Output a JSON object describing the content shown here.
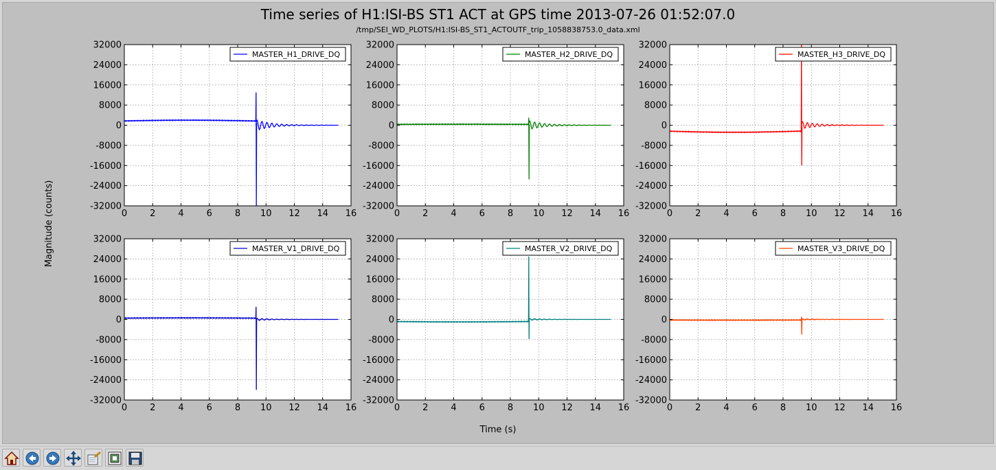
{
  "figure": {
    "title": "Time series of H1:ISI-BS ST1 ACT at GPS time 2013-07-26 01:52:07.0",
    "subtitle": "/tmp/SEI_WD_PLOTS/H1:ISI-BS_ST1_ACTOUTF_trip_1058838753.0_data.xml",
    "ylabel": "Magnitude (counts)",
    "xlabel": "Time (s)",
    "background": "#bfbfbf"
  },
  "chart_data": [
    {
      "type": "line",
      "series": [
        {
          "name": "MASTER_H1_DRIVE_DQ",
          "color": "#0000ff",
          "pre_level": 2000,
          "spike_x": 9.28,
          "spike_min": -32000,
          "spike_max": 13000,
          "ring_amp": 2200
        }
      ],
      "xlim": [
        0,
        16
      ],
      "ylim": [
        -32000,
        32000
      ],
      "xticks": [
        0,
        2,
        4,
        6,
        8,
        10,
        12,
        14,
        16
      ],
      "yticks": [
        -32000,
        -24000,
        -16000,
        -8000,
        0,
        8000,
        16000,
        24000,
        32000
      ],
      "x_end": 15.1,
      "grid": true,
      "legend": "top-right"
    },
    {
      "type": "line",
      "series": [
        {
          "name": "MASTER_H2_DRIVE_DQ",
          "color": "#008000",
          "pre_level": 400,
          "spike_x": 9.28,
          "spike_min": -21500,
          "spike_max": 3000,
          "ring_amp": 1800
        }
      ],
      "xlim": [
        0,
        16
      ],
      "ylim": [
        -32000,
        32000
      ],
      "xticks": [
        0,
        2,
        4,
        6,
        8,
        10,
        12,
        14,
        16
      ],
      "yticks": [
        -32000,
        -24000,
        -16000,
        -8000,
        0,
        8000,
        16000,
        24000,
        32000
      ],
      "x_end": 15.1,
      "grid": true,
      "legend": "top-right"
    },
    {
      "type": "line",
      "series": [
        {
          "name": "MASTER_H3_DRIVE_DQ",
          "color": "#ff0000",
          "pre_level": -2800,
          "spike_x": 9.28,
          "spike_min": -16000,
          "spike_max": 32000,
          "ring_amp": 1500
        }
      ],
      "xlim": [
        0,
        16
      ],
      "ylim": [
        -32000,
        32000
      ],
      "xticks": [
        0,
        2,
        4,
        6,
        8,
        10,
        12,
        14,
        16
      ],
      "yticks": [
        -32000,
        -24000,
        -16000,
        -8000,
        0,
        8000,
        16000,
        24000,
        32000
      ],
      "x_end": 15.1,
      "grid": true,
      "legend": "top-right"
    },
    {
      "type": "line",
      "series": [
        {
          "name": "MASTER_V1_DRIVE_DQ",
          "color": "#0000cc",
          "pre_level": 600,
          "spike_x": 9.28,
          "spike_min": -28000,
          "spike_max": 5000,
          "ring_amp": 400
        }
      ],
      "xlim": [
        0,
        16
      ],
      "ylim": [
        -32000,
        32000
      ],
      "xticks": [
        0,
        2,
        4,
        6,
        8,
        10,
        12,
        14,
        16
      ],
      "yticks": [
        -32000,
        -24000,
        -16000,
        -8000,
        0,
        8000,
        16000,
        24000,
        32000
      ],
      "x_end": 15.1,
      "grid": true,
      "legend": "top-right"
    },
    {
      "type": "line",
      "series": [
        {
          "name": "MASTER_V2_DRIVE_DQ",
          "color": "#008080",
          "pre_level": -1000,
          "spike_x": 9.28,
          "spike_min": -7800,
          "spike_max": 25000,
          "ring_amp": 300
        }
      ],
      "xlim": [
        0,
        16
      ],
      "ylim": [
        -32000,
        32000
      ],
      "xticks": [
        0,
        2,
        4,
        6,
        8,
        10,
        12,
        14,
        16
      ],
      "yticks": [
        -32000,
        -24000,
        -16000,
        -8000,
        0,
        8000,
        16000,
        24000,
        32000
      ],
      "x_end": 15.1,
      "grid": true,
      "legend": "top-right"
    },
    {
      "type": "line",
      "series": [
        {
          "name": "MASTER_V3_DRIVE_DQ",
          "color": "#ff4500",
          "pre_level": -300,
          "spike_x": 9.28,
          "spike_min": -6000,
          "spike_max": 1000,
          "ring_amp": 200
        }
      ],
      "xlim": [
        0,
        16
      ],
      "ylim": [
        -32000,
        32000
      ],
      "xticks": [
        0,
        2,
        4,
        6,
        8,
        10,
        12,
        14,
        16
      ],
      "yticks": [
        -32000,
        -24000,
        -16000,
        -8000,
        0,
        8000,
        16000,
        24000,
        32000
      ],
      "x_end": 15.1,
      "grid": true,
      "legend": "top-right"
    }
  ],
  "toolbar": {
    "buttons": [
      {
        "name": "home-button",
        "icon": "home-icon"
      },
      {
        "name": "back-button",
        "icon": "back-arrow-icon"
      },
      {
        "name": "forward-button",
        "icon": "forward-arrow-icon"
      },
      {
        "name": "pan-button",
        "icon": "pan-arrows-icon"
      },
      {
        "name": "zoom-button",
        "icon": "zoom-rect-icon"
      },
      {
        "name": "subplots-button",
        "icon": "subplots-icon"
      },
      {
        "name": "save-button",
        "icon": "floppy-disk-icon"
      }
    ]
  }
}
